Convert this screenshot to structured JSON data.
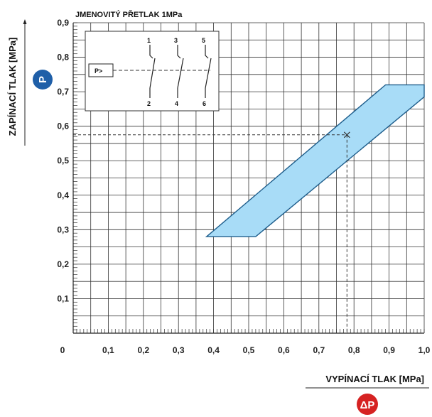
{
  "chart_data": {
    "type": "area",
    "title": "JMENOVITÝ PŘETLAK 1MPa",
    "xlabel": "VYPÍNACÍ TLAK [MPa]",
    "ylabel": "ZAPÍNACÍ TLAK [MPa]",
    "xlim": [
      0,
      1.0
    ],
    "ylim": [
      0,
      0.9
    ],
    "x_ticks": [
      "0",
      "0,1",
      "0,2",
      "0,3",
      "0,4",
      "0,5",
      "0,6",
      "0,7",
      "0,8",
      "0,9",
      "1,0"
    ],
    "y_ticks": [
      "0,1",
      "0,2",
      "0,3",
      "0,4",
      "0,5",
      "0,6",
      "0,7",
      "0,8",
      "0,9"
    ],
    "grid": true,
    "region": {
      "fill": "#a8dcf7",
      "stroke": "#1f5e8c",
      "points": [
        [
          0.38,
          0.28
        ],
        [
          0.52,
          0.28
        ],
        [
          1.0,
          0.685
        ],
        [
          1.0,
          0.72
        ],
        [
          0.89,
          0.72
        ],
        [
          0.38,
          0.28
        ]
      ]
    },
    "example_point": {
      "x": 0.78,
      "y": 0.575
    }
  },
  "badges": {
    "y_symbol": "P",
    "x_symbol": "ΔP",
    "color": "#1f5fa8",
    "x_color": "#d62222"
  },
  "inset": {
    "label": "P>",
    "contacts": [
      {
        "top": "1",
        "bottom": "2"
      },
      {
        "top": "3",
        "bottom": "4"
      },
      {
        "top": "5",
        "bottom": "6"
      }
    ]
  }
}
